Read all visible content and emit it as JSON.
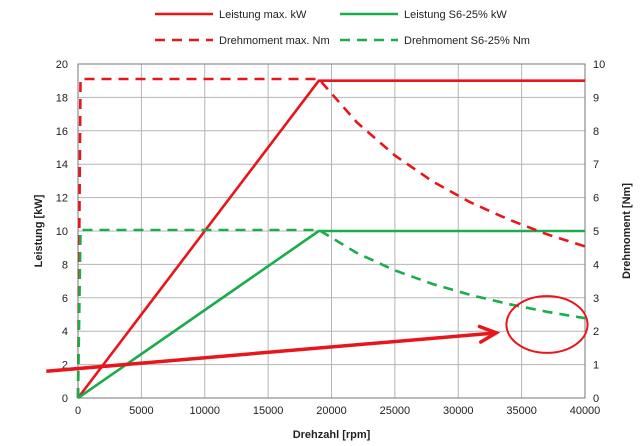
{
  "chart_data": {
    "type": "line",
    "xlabel": "Drehzahl [rpm]",
    "ylabel": "Leistung [kW]",
    "y2label": "Drehmoment [Nm]",
    "xlim": [
      0,
      40000
    ],
    "ylim": [
      0,
      20
    ],
    "y2lim": [
      0,
      10
    ],
    "x_ticks": [
      0,
      5000,
      10000,
      15000,
      20000,
      25000,
      30000,
      35000,
      40000
    ],
    "y_ticks": [
      0,
      2,
      4,
      6,
      8,
      10,
      12,
      14,
      16,
      18,
      20
    ],
    "y2_ticks": [
      0,
      1,
      2,
      3,
      4,
      5,
      6,
      7,
      8,
      9,
      10
    ],
    "grid": true,
    "legend_position": "top",
    "series": [
      {
        "name": "Leistung max. kW",
        "axis": "left",
        "style": "solid",
        "color": "#e8151b",
        "x": [
          0,
          19000,
          40000
        ],
        "y": [
          0,
          19,
          19
        ]
      },
      {
        "name": "Leistung S6-25% kW",
        "axis": "left",
        "style": "solid",
        "color": "#1aad4b",
        "x": [
          0,
          19000,
          40000
        ],
        "y": [
          0,
          10,
          10
        ]
      },
      {
        "name": "Drehmoment max. Nm",
        "axis": "right",
        "style": "dashed",
        "color": "#e8151b",
        "x": [
          0,
          200,
          19000,
          22000,
          25000,
          28000,
          31000,
          34000,
          37000,
          40000
        ],
        "y": [
          0,
          9.55,
          9.55,
          8.25,
          7.26,
          6.48,
          5.85,
          5.34,
          4.9,
          4.54
        ]
      },
      {
        "name": "Drehmoment S6-25% Nm",
        "axis": "right",
        "style": "dashed",
        "color": "#1aad4b",
        "x": [
          0,
          200,
          19000,
          22000,
          25000,
          28000,
          31000,
          34000,
          37000,
          40000
        ],
        "y": [
          0,
          5.03,
          5.03,
          4.34,
          3.82,
          3.41,
          3.08,
          2.81,
          2.58,
          2.39
        ]
      }
    ],
    "annotations": [
      {
        "type": "arrow",
        "color": "#e8151b",
        "from": [
          -2500,
          1.6
        ],
        "to": [
          33000,
          3.9
        ]
      },
      {
        "type": "ellipse",
        "color": "#e8151b",
        "center": [
          37000,
          4.4
        ],
        "radius_x": 3200,
        "radius_y": 1.7
      }
    ]
  }
}
